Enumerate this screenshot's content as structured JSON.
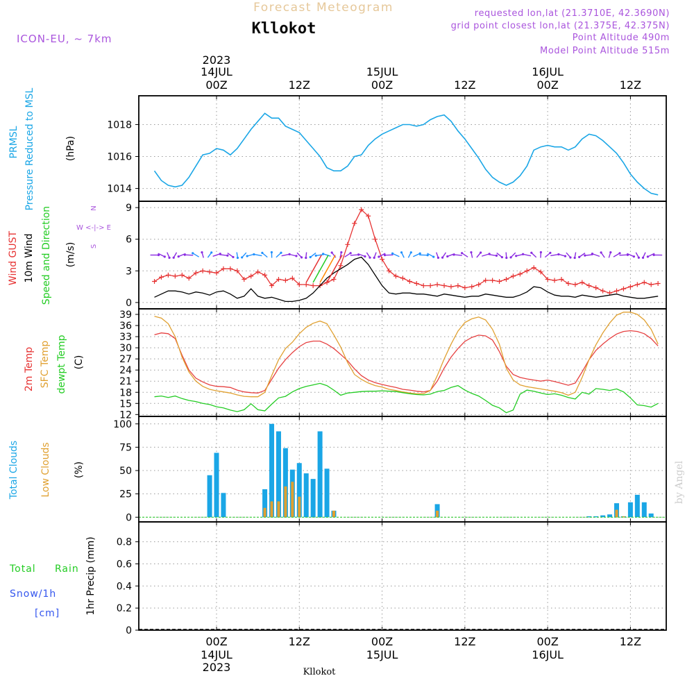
{
  "header": {
    "product": "Forecast Meteogram",
    "location": "Kllokot",
    "model": "ICON-EU, ~ 7km",
    "requested": "requested lon,lat (21.3710E, 42.3690N)",
    "gridpoint": "grid point closest lon,lat (21.375E, 42.375N)",
    "point_alt": "Point Altitude 490m",
    "model_alt": "Model Point Altitude 515m",
    "footer_location": "Kllokot",
    "credit": "by Angel"
  },
  "time_axis": {
    "top_labels": [
      {
        "line1": "2023",
        "line2": "14JUL",
        "line3": "00Z"
      },
      {
        "line2": "",
        "line3": "12Z"
      },
      {
        "line2": "15JUL",
        "line3": "00Z"
      },
      {
        "line2": "",
        "line3": "12Z"
      },
      {
        "line2": "16JUL",
        "line3": "00Z"
      },
      {
        "line2": "",
        "line3": "12Z"
      }
    ],
    "bottom_labels": [
      {
        "line1": "00Z",
        "line2": "14JUL",
        "line3": "2023"
      },
      {
        "line1": "12Z"
      },
      {
        "line1": "00Z",
        "line2": "15JUL"
      },
      {
        "line1": "12Z"
      },
      {
        "line1": "00Z",
        "line2": "16JUL"
      },
      {
        "line1": "12Z"
      }
    ]
  },
  "panel_labels": {
    "pressure": {
      "name": "PRMSL",
      "desc": "Pressure Reduced to MSL",
      "unit": "(hPa)"
    },
    "wind": {
      "gust": "Wind GUST",
      "wind10": "10m Wind",
      "dir": "Speed and Direction",
      "unit": "(m/s)",
      "compass_n": "N",
      "compass_s": "S",
      "compass_we": "W <-|-> E"
    },
    "temp": {
      "t2m": "2m Temp",
      "sfc": "SFC Temp",
      "dewpt": "dewpt Temp",
      "unit": "(C)"
    },
    "clouds": {
      "total": "Total Clouds",
      "low": "Low Clouds",
      "unit": "(%)"
    },
    "precip": {
      "rain1": "Total",
      "rain2": "Rain",
      "snow": "Snow/1h",
      "snow_unit": "[cm]",
      "unit": "1hr Precip (mm)"
    }
  },
  "colors": {
    "pressure": "#1aa6e6",
    "gust": "#e63232",
    "wind": "#000000",
    "windarrow_purple": "#8a2be2",
    "windarrow_blue": "#1e90ff",
    "t2m": "#e64040",
    "sfc": "#e0a030",
    "dewpt": "#22cc22",
    "total_clouds": "#1aa6e6",
    "low_clouds": "#e0a030",
    "label_purple": "#aa55dd",
    "title_tan": "#e6c89a"
  },
  "chart_data": [
    {
      "type": "line",
      "title": "PRMSL Pressure Reduced to MSL",
      "ylabel": "(hPa)",
      "ylim": [
        1013.2,
        1019.8
      ],
      "yticks": [
        1014,
        1016,
        1018
      ],
      "x_hours_from_14JUL00Z": [
        -9,
        -8,
        -7,
        -6,
        -5,
        -4,
        -3,
        -2,
        -1,
        0,
        1,
        2,
        3,
        4,
        5,
        6,
        7,
        8,
        9,
        10,
        11,
        12,
        13,
        14,
        15,
        16,
        17,
        18,
        19,
        20,
        21,
        22,
        23,
        24,
        25,
        26,
        27,
        28,
        29,
        30,
        31,
        32,
        33,
        34,
        35,
        36,
        37,
        38,
        39,
        40,
        41,
        42,
        43,
        44,
        45,
        46,
        47,
        48,
        49,
        50,
        51,
        52,
        53,
        54,
        55,
        56,
        57,
        58,
        59,
        60,
        61,
        62,
        63,
        64
      ],
      "series": [
        {
          "name": "PRMSL",
          "values": [
            1015.1,
            1014.5,
            1014.2,
            1014.1,
            1014.2,
            1014.7,
            1015.4,
            1016.1,
            1016.2,
            1016.5,
            1016.4,
            1016.1,
            1016.5,
            1017.1,
            1017.7,
            1018.2,
            1018.7,
            1018.4,
            1018.4,
            1017.9,
            1017.7,
            1017.5,
            1017.0,
            1016.5,
            1016.0,
            1015.3,
            1015.1,
            1015.1,
            1015.4,
            1016.0,
            1016.1,
            1016.7,
            1017.1,
            1017.4,
            1017.6,
            1017.8,
            1018.0,
            1018.0,
            1017.9,
            1018.0,
            1018.3,
            1018.5,
            1018.6,
            1018.2,
            1017.6,
            1017.1,
            1016.5,
            1015.9,
            1015.2,
            1014.7,
            1014.4,
            1014.2,
            1014.4,
            1014.8,
            1015.4,
            1016.4,
            1016.6,
            1016.7,
            1016.6,
            1016.6,
            1016.4,
            1016.6,
            1017.1,
            1017.4,
            1017.3,
            1017.0,
            1016.6,
            1016.2,
            1015.6,
            1014.9,
            1014.4,
            1014.0,
            1013.7,
            1013.6
          ]
        }
      ]
    },
    {
      "type": "line",
      "title": "Wind GUST / 10m Wind",
      "ylabel": "(m/s)",
      "ylim": [
        -0.6,
        9.6
      ],
      "yticks": [
        0,
        3,
        6,
        9
      ],
      "x_hours_from_14JUL00Z": [
        -9,
        -8,
        -7,
        -6,
        -5,
        -4,
        -3,
        -2,
        -1,
        0,
        1,
        2,
        3,
        4,
        5,
        6,
        7,
        8,
        9,
        10,
        11,
        12,
        13,
        14,
        15,
        16,
        17,
        18,
        19,
        20,
        21,
        22,
        23,
        24,
        25,
        26,
        27,
        28,
        29,
        30,
        31,
        32,
        33,
        34,
        35,
        36,
        37,
        38,
        39,
        40,
        41,
        42,
        43,
        44,
        45,
        46,
        47,
        48,
        49,
        50,
        51,
        52,
        53,
        54,
        55,
        56,
        57,
        58,
        59,
        60,
        61,
        62,
        63,
        64
      ],
      "series": [
        {
          "name": "Wind GUST",
          "values": [
            2.0,
            2.4,
            2.6,
            2.5,
            2.6,
            2.3,
            2.8,
            3.0,
            2.9,
            2.8,
            3.2,
            3.2,
            3.0,
            2.2,
            2.5,
            2.9,
            2.6,
            1.6,
            2.2,
            2.1,
            2.3,
            1.7,
            1.7,
            1.6,
            1.6,
            1.9,
            2.2,
            3.5,
            5.5,
            7.5,
            8.8,
            8.2,
            6.0,
            4.1,
            3.0,
            2.5,
            2.3,
            2.0,
            1.8,
            1.6,
            1.6,
            1.7,
            1.6,
            1.5,
            1.6,
            1.4,
            1.5,
            1.7,
            2.1,
            2.1,
            2.0,
            2.2,
            2.5,
            2.7,
            3.0,
            3.3,
            2.9,
            2.2,
            2.1,
            2.2,
            1.8,
            1.7,
            1.9,
            1.6,
            1.4,
            1.1,
            0.9,
            1.1,
            1.3,
            1.5,
            1.7,
            1.9,
            1.7,
            1.8
          ]
        },
        {
          "name": "10m Wind",
          "values": [
            0.5,
            0.8,
            1.1,
            1.1,
            1.0,
            0.8,
            1.0,
            0.9,
            0.7,
            1.0,
            1.1,
            0.8,
            0.4,
            0.6,
            1.3,
            0.6,
            0.4,
            0.5,
            0.3,
            0.1,
            0.1,
            0.2,
            0.4,
            0.9,
            1.6,
            2.3,
            2.8,
            3.2,
            3.6,
            4.1,
            4.3,
            3.6,
            2.6,
            1.6,
            0.9,
            0.8,
            0.9,
            0.9,
            0.8,
            0.8,
            0.7,
            0.6,
            0.8,
            0.7,
            0.6,
            0.5,
            0.6,
            0.6,
            0.8,
            0.7,
            0.6,
            0.5,
            0.5,
            0.7,
            1.0,
            1.5,
            1.4,
            1.0,
            0.7,
            0.6,
            0.6,
            0.5,
            0.7,
            0.6,
            0.5,
            0.6,
            0.7,
            0.8,
            0.6,
            0.5,
            0.4,
            0.4,
            0.5,
            0.6
          ]
        }
      ]
    },
    {
      "type": "line",
      "title": "2m Temp / SFC Temp / dewpt Temp",
      "ylabel": "(C)",
      "ylim": [
        11.5,
        40.5
      ],
      "yticks": [
        12,
        15,
        18,
        21,
        24,
        27,
        30,
        33,
        36,
        39
      ],
      "x_hours_from_14JUL00Z": [
        -9,
        -8,
        -7,
        -6,
        -5,
        -4,
        -3,
        -2,
        -1,
        0,
        1,
        2,
        3,
        4,
        5,
        6,
        7,
        8,
        9,
        10,
        11,
        12,
        13,
        14,
        15,
        16,
        17,
        18,
        19,
        20,
        21,
        22,
        23,
        24,
        25,
        26,
        27,
        28,
        29,
        30,
        31,
        32,
        33,
        34,
        35,
        36,
        37,
        38,
        39,
        40,
        41,
        42,
        43,
        44,
        45,
        46,
        47,
        48,
        49,
        50,
        51,
        52,
        53,
        54,
        55,
        56,
        57,
        58,
        59,
        60,
        61,
        62,
        63,
        64
      ],
      "series": [
        {
          "name": "2m Temp",
          "values": [
            33.5,
            34.0,
            33.8,
            32.5,
            28.0,
            24.0,
            21.8,
            20.8,
            20.0,
            19.6,
            19.5,
            19.3,
            18.6,
            18.1,
            17.9,
            17.8,
            18.5,
            21.5,
            24.5,
            26.8,
            28.7,
            30.3,
            31.4,
            31.8,
            31.8,
            31.0,
            29.8,
            28.2,
            26.5,
            24.3,
            22.5,
            21.3,
            20.6,
            20.1,
            19.7,
            19.3,
            18.8,
            18.6,
            18.3,
            18.1,
            18.5,
            21.0,
            24.5,
            27.5,
            29.8,
            31.7,
            32.8,
            33.4,
            33.2,
            32.1,
            29.0,
            25.0,
            22.8,
            22.0,
            21.6,
            21.3,
            21.0,
            21.3,
            20.9,
            20.4,
            19.9,
            20.5,
            23.5,
            26.8,
            29.3,
            31.0,
            32.5,
            33.7,
            34.4,
            34.6,
            34.4,
            33.8,
            32.5,
            30.5
          ]
        },
        {
          "name": "SFC Temp",
          "values": [
            38.5,
            38.0,
            36.5,
            33.0,
            27.5,
            23.5,
            21.0,
            19.6,
            18.8,
            18.4,
            18.1,
            17.8,
            17.3,
            16.9,
            16.8,
            16.8,
            18.0,
            22.5,
            26.8,
            29.8,
            31.5,
            33.8,
            35.5,
            36.6,
            37.2,
            36.5,
            33.5,
            30.2,
            26.0,
            22.8,
            21.5,
            20.5,
            19.8,
            19.4,
            18.8,
            18.5,
            18.1,
            17.8,
            17.6,
            17.6,
            18.5,
            22.5,
            27.0,
            31.0,
            34.5,
            36.8,
            37.8,
            38.3,
            37.5,
            35.0,
            31.0,
            24.5,
            21.3,
            20.0,
            19.5,
            19.2,
            18.9,
            18.6,
            18.3,
            17.9,
            17.2,
            18.0,
            22.0,
            26.8,
            30.8,
            34.0,
            36.7,
            38.8,
            39.6,
            39.6,
            39.0,
            37.5,
            35.0,
            31.0
          ]
        },
        {
          "name": "dewpt Temp",
          "values": [
            16.8,
            17.0,
            16.6,
            17.0,
            16.3,
            15.8,
            15.5,
            15.0,
            14.7,
            14.1,
            13.8,
            13.2,
            12.8,
            13.3,
            14.9,
            13.3,
            13.0,
            14.8,
            16.5,
            16.9,
            18.1,
            19.0,
            19.6,
            20.0,
            20.4,
            19.8,
            18.6,
            17.2,
            17.8,
            18.0,
            18.2,
            18.3,
            18.3,
            18.4,
            18.3,
            18.2,
            17.9,
            17.6,
            17.4,
            17.3,
            17.5,
            18.2,
            18.5,
            19.3,
            19.8,
            18.6,
            17.7,
            17.0,
            15.8,
            14.5,
            13.8,
            12.5,
            13.2,
            17.5,
            18.6,
            18.3,
            17.8,
            17.4,
            17.6,
            17.2,
            16.6,
            16.2,
            18.0,
            17.5,
            19.0,
            18.8,
            18.5,
            18.9,
            18.1,
            16.5,
            14.6,
            14.4,
            14.0,
            15.0
          ]
        }
      ]
    },
    {
      "type": "bar",
      "title": "Total Clouds / Low Clouds",
      "ylabel": "(%)",
      "ylim": [
        -5,
        108
      ],
      "yticks": [
        0,
        25,
        50,
        75,
        100
      ],
      "x_hours_from_14JUL00Z": [
        -1,
        0,
        1,
        7,
        8,
        9,
        10,
        11,
        12,
        13,
        14,
        15,
        16,
        17,
        32,
        54,
        55,
        56,
        57,
        58,
        59,
        60,
        61,
        62,
        63,
        64
      ],
      "series": [
        {
          "name": "Total Clouds",
          "values": [
            45,
            69,
            26,
            30,
            100,
            92,
            74,
            51,
            58,
            47,
            41,
            92,
            52,
            7,
            14,
            1,
            1,
            2,
            3,
            15,
            1,
            16,
            24,
            16,
            4,
            0
          ]
        },
        {
          "name": "Low Clouds",
          "values": [
            0,
            0,
            0,
            10,
            17,
            17,
            33,
            38,
            22,
            0,
            0,
            0,
            0,
            7,
            7,
            0,
            0,
            0,
            0,
            8,
            1,
            0,
            0,
            0,
            0,
            0
          ]
        }
      ]
    },
    {
      "type": "bar",
      "title": "1hr Precip",
      "ylabel": "1hr Precip (mm)",
      "ylim": [
        0,
        0.98
      ],
      "yticks": [
        "0",
        "0.2",
        "0.4",
        "0.6",
        "0.8"
      ],
      "categories": [],
      "values": []
    }
  ]
}
